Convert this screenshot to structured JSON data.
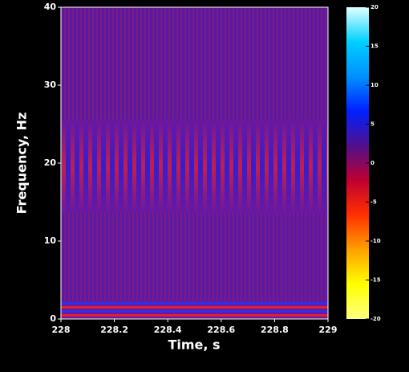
{
  "chart_data": {
    "type": "heatmap",
    "xlabel": "Time, s",
    "ylabel": "Frequency, Hz",
    "xlim": [
      228,
      229
    ],
    "xticks": [
      228,
      228.2,
      228.4,
      228.6,
      228.8,
      229
    ],
    "ylim": [
      0,
      40
    ],
    "yticks": [
      0,
      10,
      20,
      30,
      40
    ],
    "colorbar": {
      "lim": [
        -20,
        20
      ],
      "ticks": [
        20,
        15,
        10,
        5,
        0,
        -5,
        -10,
        -15,
        -20
      ],
      "colors": [
        "#ffff80",
        "#ffff00",
        "#ffa000",
        "#ff3000",
        "#c00030",
        "#50108c",
        "#0020ff",
        "#0090ff",
        "#00d0ff",
        "#e0ffff"
      ]
    }
  }
}
